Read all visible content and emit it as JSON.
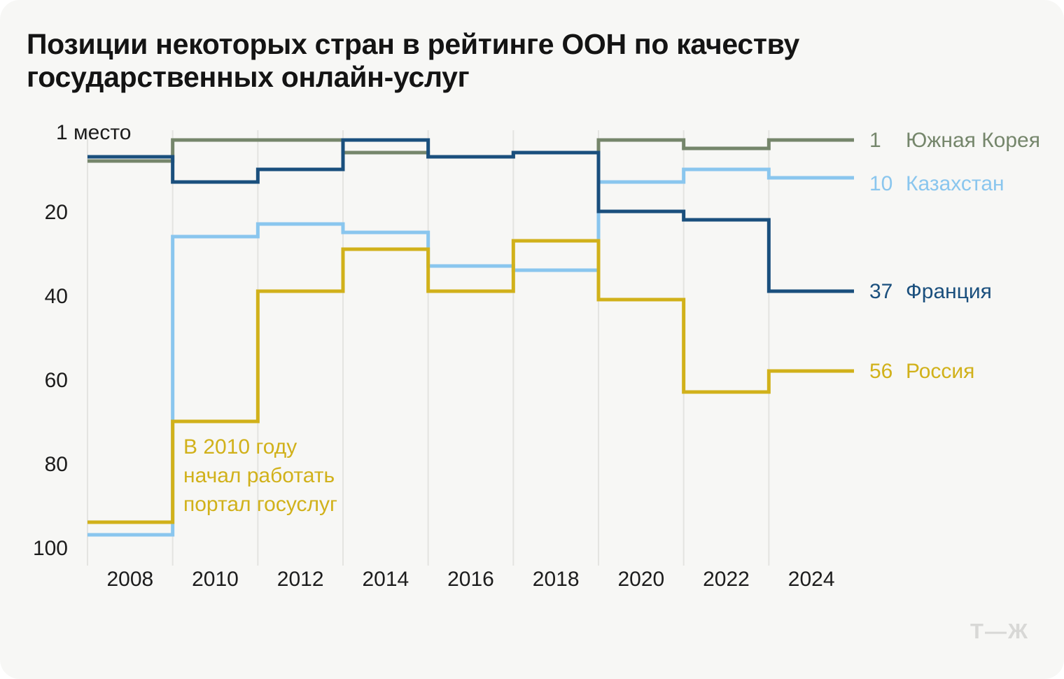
{
  "title_lines": [
    "Позиции некоторых стран в рейтинге ООН по качеству",
    "государственных онлайн-услуг"
  ],
  "logo_text": "Т—Ж",
  "chart_data": {
    "type": "step-line",
    "title": "Позиции некоторых стран в рейтинге ООН по качеству государственных онлайн-услуг",
    "x_years": [
      "2008",
      "2010",
      "2012",
      "2014",
      "2016",
      "2018",
      "2020",
      "2022",
      "2024"
    ],
    "y_axis": {
      "inverted": true,
      "range": [
        1,
        100
      ],
      "ticks": [
        {
          "label": "1 место",
          "value": 1
        },
        {
          "label": "20",
          "value": 20
        },
        {
          "label": "40",
          "value": 40
        },
        {
          "label": "60",
          "value": 60
        },
        {
          "label": "80",
          "value": 80
        },
        {
          "label": "100",
          "value": 100
        }
      ]
    },
    "grid": "vertical-only",
    "legend_position": "right-of-line-ends",
    "series": [
      {
        "key": "south-korea",
        "name": "Южная Корея",
        "color": "#75866B",
        "end_label": "1",
        "values": [
          6,
          1,
          1,
          4,
          5,
          4,
          1,
          3,
          1
        ]
      },
      {
        "key": "kazakhstan",
        "name": "Казахстан",
        "color": "#8AC6EE",
        "end_label": "10",
        "values": [
          95,
          24,
          21,
          23,
          31,
          32,
          11,
          8,
          10
        ]
      },
      {
        "key": "france",
        "name": "Франция",
        "color": "#1A4F7D",
        "end_label": "37",
        "values": [
          5,
          11,
          8,
          1,
          5,
          4,
          18,
          20,
          37
        ]
      },
      {
        "key": "russia",
        "name": "Россия",
        "color": "#D1B11A",
        "end_label": "56",
        "values": [
          92,
          68,
          37,
          27,
          37,
          25,
          39,
          61,
          56
        ]
      }
    ],
    "annotation": {
      "series_key": "russia",
      "color": "#D1B11A",
      "text_lines": [
        "В 2010 году",
        "начал работать",
        "портал госуслуг"
      ]
    }
  }
}
